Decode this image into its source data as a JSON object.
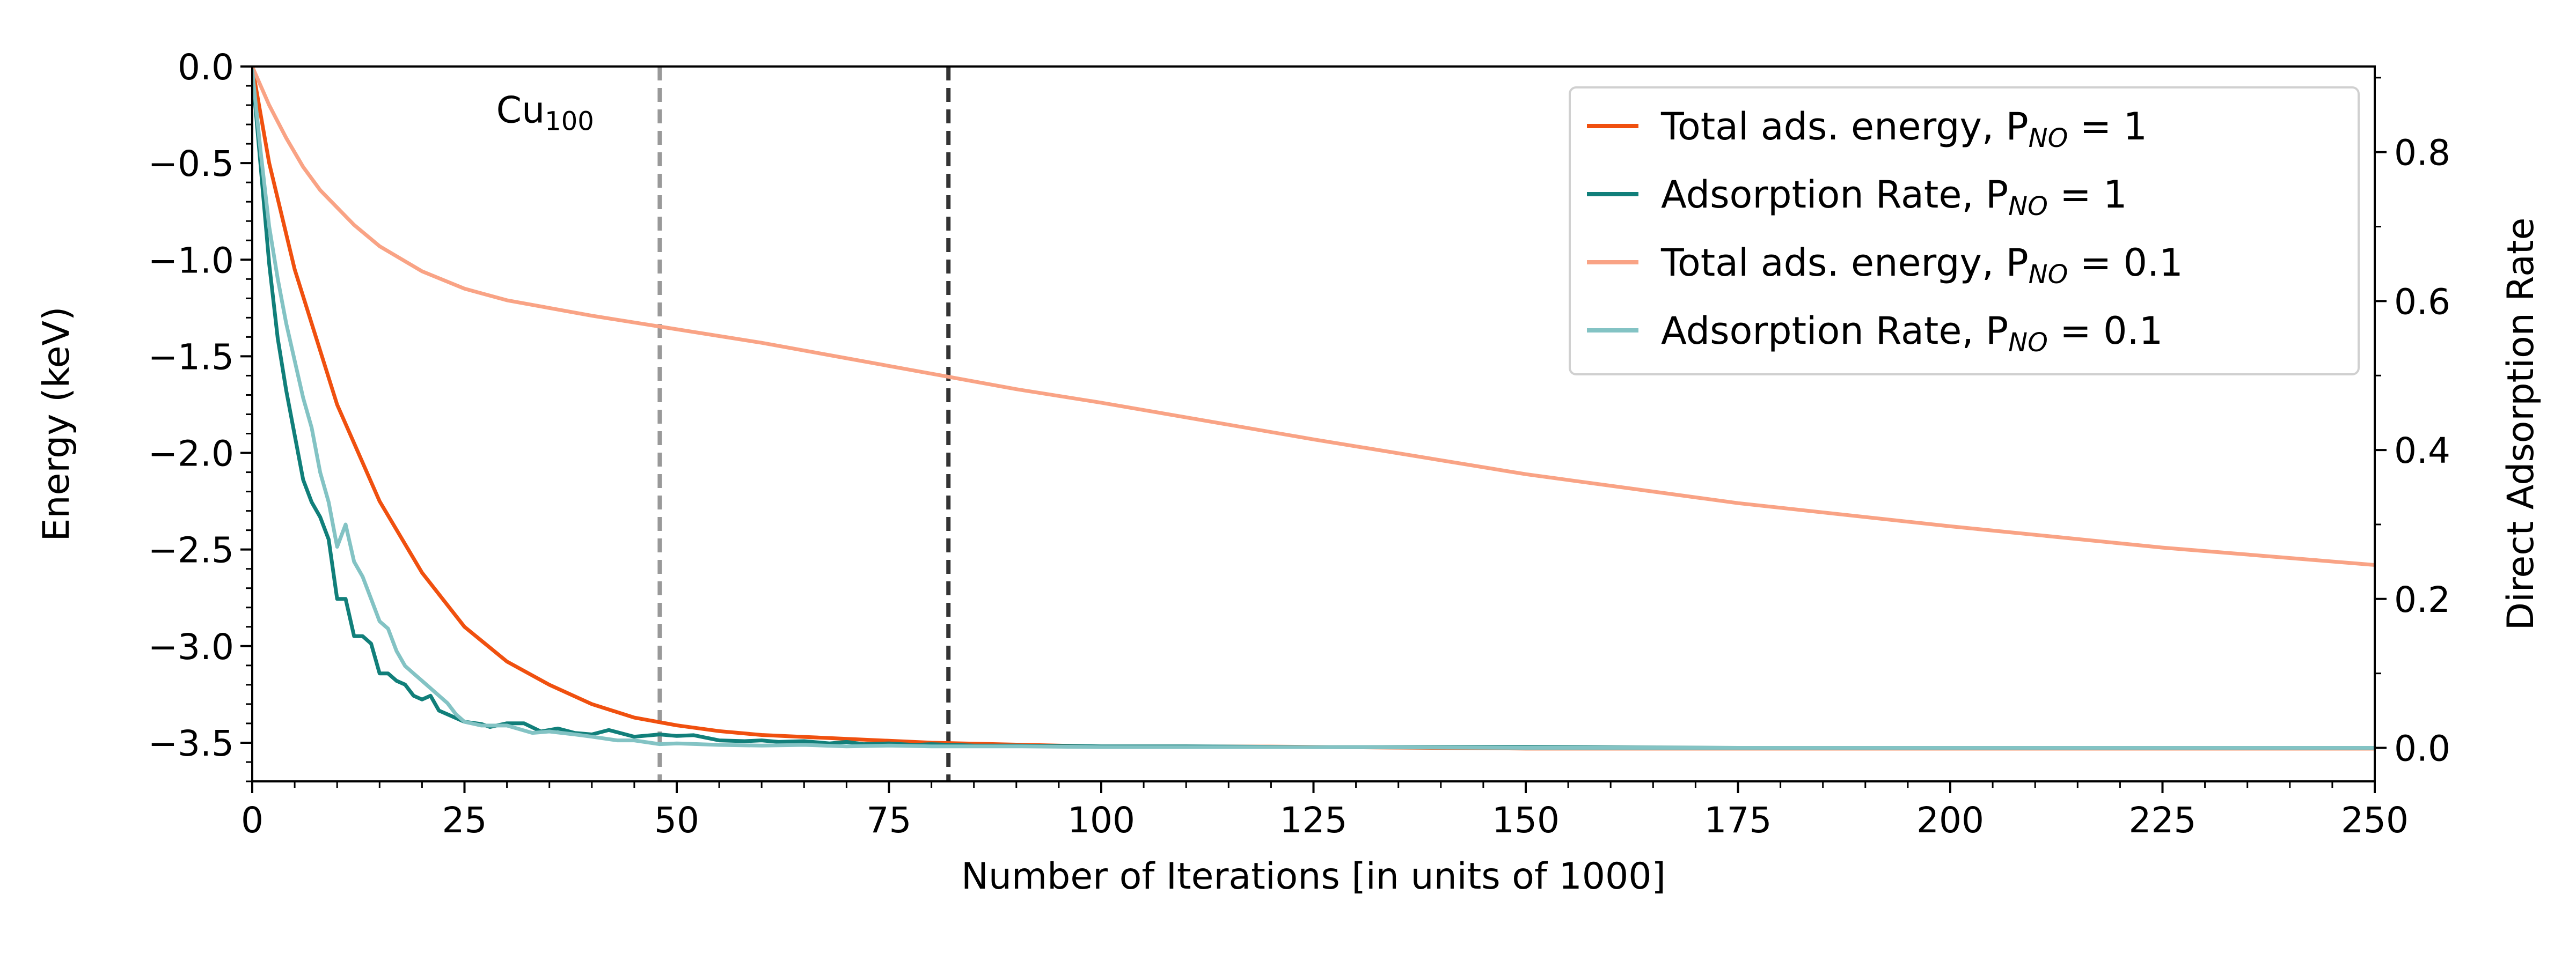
{
  "chart_data": {
    "type": "line",
    "annotation": {
      "base": "Cu",
      "sub": "100",
      "x": 30,
      "y": -0.22
    },
    "xlabel": "Number of Iterations [in units of 1000]",
    "ylabel_left": "Energy (keV)",
    "ylabel_right": "Direct Adsorption Rate",
    "xlim": [
      0,
      250
    ],
    "ylim_left": [
      -3.7,
      0.0
    ],
    "ylim_right": [
      -0.045,
      0.915
    ],
    "x_ticks": [
      0,
      25,
      50,
      75,
      100,
      125,
      150,
      175,
      200,
      225,
      250
    ],
    "x_tick_labels": [
      "0",
      "25",
      "50",
      "75",
      "100",
      "125",
      "150",
      "175",
      "200",
      "225",
      "250"
    ],
    "y_left_ticks": [
      0.0,
      -0.5,
      -1.0,
      -1.5,
      -2.0,
      -2.5,
      -3.0,
      -3.5
    ],
    "y_left_tick_labels": [
      "0.0",
      "−0.5",
      "−1.0",
      "−1.5",
      "−2.0",
      "−2.5",
      "−3.0",
      "−3.5"
    ],
    "y_right_ticks": [
      0.0,
      0.2,
      0.4,
      0.6,
      0.8
    ],
    "y_right_tick_labels": [
      "0.0",
      "0.2",
      "0.4",
      "0.6",
      "0.8"
    ],
    "vlines": [
      {
        "x": 48,
        "color": "#999999"
      },
      {
        "x": 82,
        "color": "#333333"
      }
    ],
    "legend_position": "top-right",
    "series": [
      {
        "name": "Total ads. energy, P",
        "sub": "NO",
        "suffix": " = 1",
        "axis": "left",
        "color": "#f0500f",
        "x": [
          0,
          2,
          5,
          10,
          15,
          20,
          25,
          30,
          35,
          40,
          45,
          50,
          55,
          60,
          65,
          70,
          75,
          80,
          90,
          100,
          120,
          150,
          200,
          250
        ],
        "y": [
          0,
          -0.5,
          -1.05,
          -1.75,
          -2.25,
          -2.62,
          -2.9,
          -3.08,
          -3.2,
          -3.3,
          -3.37,
          -3.41,
          -3.44,
          -3.46,
          -3.47,
          -3.48,
          -3.49,
          -3.5,
          -3.51,
          -3.52,
          -3.52,
          -3.53,
          -3.53,
          -3.53
        ]
      },
      {
        "name": "Adsorption Rate, P",
        "sub": "NO",
        "suffix": " = 1",
        "axis": "right",
        "color": "#117f7a",
        "x": [
          0,
          1,
          2,
          3,
          4,
          5,
          6,
          7,
          8,
          9,
          10,
          11,
          12,
          13,
          14,
          15,
          16,
          17,
          18,
          19,
          20,
          21,
          22,
          23,
          25,
          27,
          28,
          30,
          32,
          34,
          36,
          38,
          40,
          42,
          45,
          48,
          50,
          52,
          55,
          58,
          60,
          62,
          65,
          68,
          70,
          72,
          75,
          78,
          80,
          85,
          90,
          100,
          110,
          125,
          150,
          175,
          200,
          250
        ],
        "y": [
          0.91,
          0.78,
          0.65,
          0.55,
          0.48,
          0.42,
          0.36,
          0.33,
          0.31,
          0.28,
          0.2,
          0.2,
          0.15,
          0.15,
          0.14,
          0.1,
          0.1,
          0.09,
          0.085,
          0.07,
          0.065,
          0.07,
          0.05,
          0.045,
          0.035,
          0.032,
          0.028,
          0.033,
          0.033,
          0.022,
          0.026,
          0.02,
          0.018,
          0.024,
          0.015,
          0.018,
          0.016,
          0.017,
          0.01,
          0.009,
          0.01,
          0.008,
          0.009,
          0.006,
          0.008,
          0.005,
          0.006,
          0.004,
          0.005,
          0.003,
          0.003,
          0.002,
          0.002,
          0.001,
          0.001,
          0.0,
          0.0,
          0.0
        ]
      },
      {
        "name": "Total ads. energy, P",
        "sub": "NO",
        "suffix": " = 0.1",
        "axis": "left",
        "color": "#f9a385",
        "x": [
          0,
          2,
          4,
          6,
          8,
          10,
          12,
          15,
          20,
          25,
          30,
          40,
          50,
          60,
          70,
          80,
          90,
          100,
          125,
          150,
          175,
          200,
          225,
          250
        ],
        "y": [
          0,
          -0.2,
          -0.37,
          -0.52,
          -0.64,
          -0.73,
          -0.82,
          -0.93,
          -1.06,
          -1.15,
          -1.21,
          -1.29,
          -1.36,
          -1.43,
          -1.51,
          -1.59,
          -1.67,
          -1.74,
          -1.93,
          -2.11,
          -2.26,
          -2.38,
          -2.49,
          -2.58
        ]
      },
      {
        "name": "Adsorption Rate, P",
        "sub": "NO",
        "suffix": " = 0.1",
        "axis": "right",
        "color": "#83c3c4",
        "x": [
          0,
          1,
          2,
          3,
          4,
          5,
          6,
          7,
          8,
          9,
          10,
          11,
          12,
          13,
          14,
          15,
          16,
          17,
          18,
          19,
          20,
          21,
          22,
          23,
          24,
          25,
          27,
          30,
          33,
          35,
          38,
          40,
          43,
          45,
          48,
          50,
          55,
          60,
          65,
          70,
          75,
          80,
          90,
          100,
          110,
          125,
          150,
          200,
          250
        ],
        "y": [
          0.91,
          0.8,
          0.7,
          0.63,
          0.57,
          0.52,
          0.47,
          0.43,
          0.37,
          0.33,
          0.27,
          0.3,
          0.25,
          0.23,
          0.2,
          0.17,
          0.16,
          0.13,
          0.11,
          0.1,
          0.09,
          0.08,
          0.07,
          0.06,
          0.045,
          0.035,
          0.03,
          0.03,
          0.02,
          0.022,
          0.018,
          0.015,
          0.01,
          0.01,
          0.005,
          0.006,
          0.004,
          0.003,
          0.004,
          0.002,
          0.003,
          0.002,
          0.002,
          0.001,
          0.001,
          0.001,
          0.0,
          0.0,
          0.0
        ]
      }
    ]
  }
}
